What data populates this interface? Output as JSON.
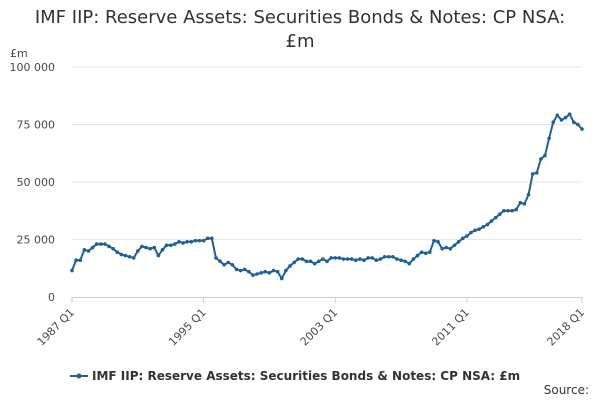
{
  "title_line1": "IMF IIP: Reserve Assets: Securities Bonds & Notes: CP NSA:",
  "title_line2": "£m",
  "credits": "Source:",
  "chart_data": {
    "type": "line",
    "title": "IMF IIP: Reserve Assets: Securities Bonds & Notes: CP NSA: £m",
    "ylabel": "£m",
    "xlabel": "",
    "ylim": [
      0,
      100000
    ],
    "yticks": [
      0,
      25000,
      50000,
      75000,
      100000
    ],
    "ytick_labels": [
      "0",
      "25 000",
      "50 000",
      "75 000",
      "100 000"
    ],
    "xticks": [
      "1987 Q1",
      "1995 Q1",
      "2003 Q1",
      "2011 Q1",
      "2018 Q1"
    ],
    "grid": true,
    "legend_position": "bottom",
    "series_color": "#206095",
    "series": [
      {
        "name": "IMF IIP: Reserve Assets: Securities Bonds & Notes: CP NSA: £m",
        "x": [
          "1987 Q1",
          "1987 Q2",
          "1987 Q3",
          "1987 Q4",
          "1988 Q1",
          "1988 Q2",
          "1988 Q3",
          "1988 Q4",
          "1989 Q1",
          "1989 Q2",
          "1989 Q3",
          "1989 Q4",
          "1990 Q1",
          "1990 Q2",
          "1990 Q3",
          "1990 Q4",
          "1991 Q1",
          "1991 Q2",
          "1991 Q3",
          "1991 Q4",
          "1992 Q1",
          "1992 Q2",
          "1992 Q3",
          "1992 Q4",
          "1993 Q1",
          "1993 Q2",
          "1993 Q3",
          "1993 Q4",
          "1994 Q1",
          "1994 Q2",
          "1994 Q3",
          "1994 Q4",
          "1995 Q1",
          "1995 Q2",
          "1995 Q3",
          "1995 Q4",
          "1996 Q1",
          "1996 Q2",
          "1996 Q3",
          "1996 Q4",
          "1997 Q1",
          "1997 Q2",
          "1997 Q3",
          "1997 Q4",
          "1998 Q1",
          "1998 Q2",
          "1998 Q3",
          "1998 Q4",
          "1999 Q1",
          "1999 Q2",
          "1999 Q3",
          "1999 Q4",
          "2000 Q1",
          "2000 Q2",
          "2000 Q3",
          "2000 Q4",
          "2001 Q1",
          "2001 Q2",
          "2001 Q3",
          "2001 Q4",
          "2002 Q1",
          "2002 Q2",
          "2002 Q3",
          "2002 Q4",
          "2003 Q1",
          "2003 Q2",
          "2003 Q3",
          "2003 Q4",
          "2004 Q1",
          "2004 Q2",
          "2004 Q3",
          "2004 Q4",
          "2005 Q1",
          "2005 Q2",
          "2005 Q3",
          "2005 Q4",
          "2006 Q1",
          "2006 Q2",
          "2006 Q3",
          "2006 Q4",
          "2007 Q1",
          "2007 Q2",
          "2007 Q3",
          "2007 Q4",
          "2008 Q1",
          "2008 Q2",
          "2008 Q3",
          "2008 Q4",
          "2009 Q1",
          "2009 Q2",
          "2009 Q3",
          "2009 Q4",
          "2010 Q1",
          "2010 Q2",
          "2010 Q3",
          "2010 Q4",
          "2011 Q1",
          "2011 Q2",
          "2011 Q3",
          "2011 Q4",
          "2012 Q1",
          "2012 Q2",
          "2012 Q3",
          "2012 Q4",
          "2013 Q1",
          "2013 Q2",
          "2013 Q3",
          "2013 Q4",
          "2014 Q1",
          "2014 Q2",
          "2014 Q3",
          "2014 Q4",
          "2015 Q1",
          "2015 Q2",
          "2015 Q3",
          "2015 Q4",
          "2016 Q1",
          "2016 Q2",
          "2016 Q3",
          "2016 Q4",
          "2017 Q1",
          "2017 Q2",
          "2017 Q3",
          "2017 Q4",
          "2018 Q1"
        ],
        "values": [
          11500,
          16000,
          16000,
          20500,
          20000,
          21500,
          23000,
          23000,
          23000,
          22000,
          21000,
          19500,
          18500,
          18000,
          17500,
          17000,
          20000,
          22000,
          21500,
          21000,
          21500,
          18000,
          20500,
          22500,
          22500,
          23000,
          24000,
          23500,
          24000,
          24000,
          24500,
          24500,
          24500,
          25500,
          25500,
          17000,
          15500,
          14000,
          15000,
          14000,
          12000,
          11500,
          12000,
          11000,
          9500,
          10000,
          10500,
          11000,
          10500,
          11500,
          11000,
          8000,
          11500,
          13500,
          15000,
          16500,
          16500,
          15500,
          15500,
          14500,
          15500,
          16500,
          15500,
          17000,
          17000,
          17000,
          16500,
          16500,
          16500,
          16000,
          16500,
          16000,
          17000,
          17000,
          16000,
          16500,
          17500,
          17500,
          17500,
          16500,
          16000,
          15500,
          14500,
          16500,
          18000,
          19500,
          19000,
          19500,
          24500,
          24000,
          21000,
          21500,
          21000,
          22500,
          24000,
          25500,
          26500,
          28000,
          29000,
          29500,
          30500,
          31500,
          33000,
          34500,
          36000,
          37500,
          37500,
          37500,
          38000,
          41000,
          40500,
          44500,
          53500,
          54000,
          60000,
          61500,
          69000,
          76000,
          79000,
          77000,
          78000,
          79500,
          76000,
          75000,
          73000
        ]
      }
    ]
  }
}
